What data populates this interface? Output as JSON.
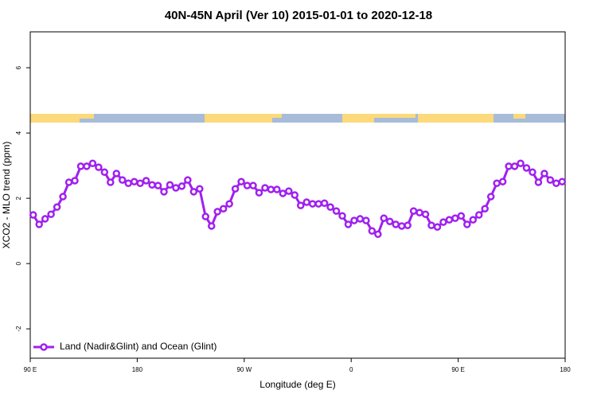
{
  "chart_data": {
    "type": "line",
    "title": "40N-45N April (Ver 10)   2015-01-01 to 2020-12-18",
    "x_label": "Longitude (deg E)",
    "y_label": "XCO2 - MLO trend (ppm)",
    "xlim": [
      90,
      540
    ],
    "ylim": [
      -2.9,
      7.1
    ],
    "xticks": [
      {
        "value": 90,
        "label": "90 E"
      },
      180,
      {
        "value": 270,
        "label": "90 W"
      },
      {
        "value": 360,
        "label": "0"
      },
      {
        "value": 450,
        "label": "90 E"
      },
      {
        "value": 540,
        "label": "180"
      }
    ],
    "yticks": [
      -2,
      0,
      2,
      4,
      6
    ],
    "legend": "bottom-left",
    "x": [
      92.5,
      97.5,
      102.5,
      107.5,
      112.5,
      117.5,
      122.5,
      127.5,
      132.5,
      137.5,
      142.5,
      147.5,
      152.5,
      157.5,
      162.5,
      167.5,
      172.5,
      177.5,
      182.5,
      187.5,
      192.5,
      197.5,
      202.5,
      207.5,
      212.5,
      217.5,
      222.5,
      227.5,
      232.5,
      237.5,
      242.5,
      247.5,
      252.5,
      257.5,
      262.5,
      267.5,
      272.5,
      277.5,
      282.5,
      287.5,
      292.5,
      297.5,
      302.5,
      307.5,
      312.5,
      317.5,
      322.5,
      327.5,
      332.5,
      337.5,
      342.5,
      347.5,
      352.5,
      357.5,
      362.5,
      367.5,
      372.5,
      377.5,
      382.5,
      387.5,
      392.5,
      397.5,
      402.5,
      407.5,
      412.5,
      417.5,
      422.5,
      427.5,
      432.5,
      437.5,
      442.5,
      447.5,
      452.5,
      457.5,
      462.5,
      467.5,
      472.5,
      477.5,
      482.5,
      487.5,
      492.5,
      497.5,
      502.5,
      507.5,
      512.5,
      517.5,
      522.5,
      527.5,
      532.5,
      537.5
    ],
    "series": [
      {
        "name": "Land (Nadir&Glint) and Ocean (Glint)",
        "color": "#a020f0",
        "values": [
          1.49,
          1.2,
          1.37,
          1.51,
          1.73,
          2.05,
          2.49,
          2.54,
          2.98,
          2.98,
          3.07,
          2.95,
          2.8,
          2.49,
          2.76,
          2.56,
          2.46,
          2.51,
          2.46,
          2.54,
          2.41,
          2.39,
          2.2,
          2.41,
          2.32,
          2.37,
          2.56,
          2.2,
          2.29,
          1.44,
          1.15,
          1.59,
          1.68,
          1.83,
          2.29,
          2.51,
          2.39,
          2.39,
          2.17,
          2.32,
          2.27,
          2.27,
          2.15,
          2.22,
          2.1,
          1.78,
          1.88,
          1.83,
          1.83,
          1.85,
          1.73,
          1.61,
          1.46,
          1.2,
          1.32,
          1.37,
          1.32,
          1.0,
          0.9,
          1.39,
          1.29,
          1.2,
          1.15,
          1.17,
          1.61,
          1.56,
          1.51,
          1.17,
          1.12,
          1.27,
          1.34,
          1.39,
          1.46,
          1.2,
          1.34,
          1.49,
          1.68,
          2.05,
          2.46,
          2.51,
          2.98,
          2.98,
          3.07,
          2.93,
          2.8,
          2.49,
          2.76,
          2.56,
          2.46,
          2.51
        ]
      }
    ]
  }
}
